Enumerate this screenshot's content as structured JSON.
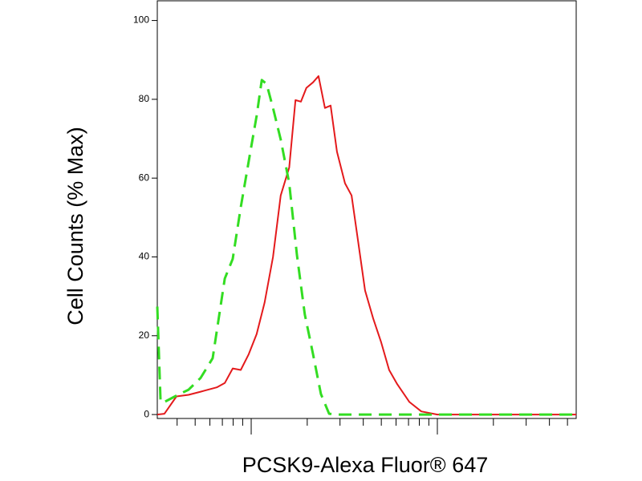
{
  "chart_data": {
    "type": "line",
    "x_label": "PCSK9-Alexa Fluor® 647",
    "y_label": "Cell Counts (% Max)",
    "xscale": "log",
    "xlim": [
      3.13,
      557
    ],
    "ylim": [
      -1,
      105
    ],
    "xticks": [
      4,
      5,
      6,
      7,
      8,
      9,
      10,
      20,
      30,
      40,
      50,
      60,
      70,
      80,
      90,
      100,
      200,
      300,
      400,
      500
    ],
    "xtick_labels": false,
    "yticks": [
      0,
      20,
      40,
      60,
      80,
      100
    ],
    "grid": false,
    "series": [
      {
        "color": "#e41a1c",
        "dash": false,
        "x": [
          3.13,
          3.42,
          3.97,
          4.61,
          5.35,
          6.53,
          7.21,
          7.96,
          8.79,
          9.7,
          10.7,
          11.8,
          13.1,
          14.4,
          16.0,
          17.3,
          18.5,
          19.8,
          21.5,
          23.0,
          24.9,
          26.7,
          28.9,
          31.9,
          34.6,
          37.1,
          40.9,
          45.2,
          49.9,
          55.1,
          60.9,
          70.7,
          82.0,
          100,
          173,
          557
        ],
        "values": [
          0,
          0.2,
          4.6,
          5,
          5.8,
          6.9,
          8,
          11.7,
          11.3,
          15.3,
          20.4,
          28.4,
          40,
          55.6,
          62.7,
          79.8,
          79.4,
          82.9,
          84.3,
          85.9,
          77.8,
          78.4,
          66.7,
          58.7,
          55.6,
          45.6,
          31.5,
          24.4,
          18.3,
          11.3,
          7.7,
          3.2,
          0.8,
          0,
          0,
          0
        ]
      },
      {
        "color": "#33dd22",
        "dash": true,
        "x": [
          3.13,
          3.26,
          3.42,
          3.97,
          4.61,
          5.35,
          6.21,
          7.21,
          7.96,
          8.79,
          9.9,
          10.7,
          11.4,
          12.1,
          13.1,
          14.4,
          16.0,
          17.6,
          19.4,
          21.5,
          23.7,
          26.2,
          28.9,
          557
        ],
        "values": [
          27.4,
          3.2,
          3.2,
          4.8,
          6.3,
          9.3,
          14.3,
          34.5,
          39.5,
          52.6,
          66.7,
          75.8,
          84.9,
          83.9,
          77.8,
          69.8,
          58.7,
          40.5,
          25.4,
          15.3,
          5.2,
          0.2,
          0,
          0
        ]
      }
    ]
  }
}
